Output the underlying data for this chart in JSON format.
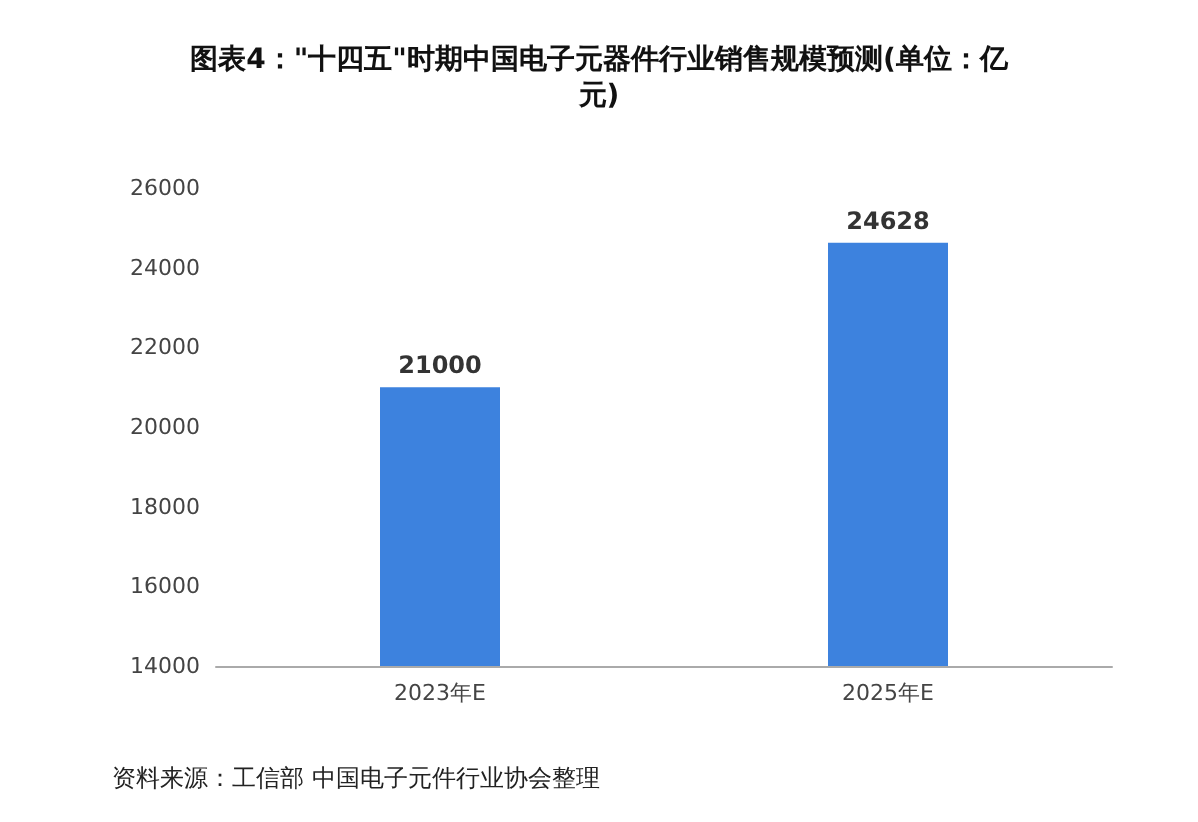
{
  "chart_data": {
    "type": "bar",
    "title": "图表4：\"十四五\"时期中国电子元器件行业销售规模预测(单位：亿元)",
    "categories": [
      "2023年E",
      "2025年E"
    ],
    "values": [
      21000,
      24628
    ],
    "color": "#3d82de",
    "ylim": [
      14000,
      26000
    ],
    "yticks": [
      14000,
      16000,
      18000,
      20000,
      22000,
      24000,
      26000
    ],
    "data_labels": true,
    "grid": false,
    "annotations": [
      "资料来源：工信部 中国电子元件行业协会整理"
    ]
  }
}
